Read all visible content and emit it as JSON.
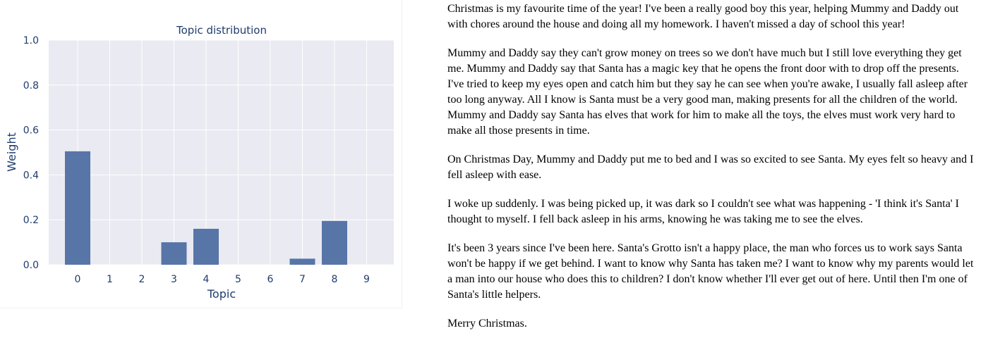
{
  "chart_data": {
    "type": "bar",
    "title": "Topic distribution",
    "xlabel": "Topic",
    "ylabel": "Weight",
    "categories": [
      "0",
      "1",
      "2",
      "3",
      "4",
      "5",
      "6",
      "7",
      "8",
      "9"
    ],
    "values": [
      0.505,
      0.0,
      0.0,
      0.1,
      0.16,
      0.0,
      0.0,
      0.027,
      0.195,
      0.0
    ],
    "ylim": [
      0,
      1.0
    ],
    "yticks": [
      "0.0",
      "0.2",
      "0.4",
      "0.6",
      "0.8",
      "1.0"
    ],
    "grid": true,
    "bar_color": "#5875a8",
    "plot_background": "#eaeaf2"
  },
  "story": {
    "paragraphs": [
      "Christmas is my favourite time of the year! I've been a really good boy this year, helping Mummy and Daddy out with chores around the house and doing all my homework. I haven't missed a day of school this year!",
      "Mummy and Daddy say they can't grow money on trees so we don't have much but I still love everything they get me. Mummy and Daddy say that Santa has a magic key that he opens the front door with to drop off the presents. I've tried to keep my eyes open and catch him but they say he can see when you're awake, I usually fall asleep after too long anyway. All I know is Santa must be a very good man, making presents for all the children of the world. Mummy and Daddy say Santa has elves that work for him to make all the toys, the elves must work very hard to make all those presents in time.",
      "On Christmas Day, Mummy and Daddy put me to bed and I was so excited to see Santa. My eyes felt so heavy and I fell asleep with ease.",
      "I woke up suddenly. I was being picked up, it was dark so I couldn't see what was happening - 'I think it's Santa' I thought to myself. I fell back asleep in his arms, knowing he was taking me to see the elves.",
      "It's been 3 years since I've been here. Santa's Grotto isn't a happy place, the man who forces us to work says Santa won't be happy if we get behind. I want to know why Santa has taken me? I want to know why my parents would let a man into our house who does this to children? I don't know whether I'll ever get out of here. Until then I'm one of Santa's little helpers.",
      "Merry Christmas."
    ]
  }
}
